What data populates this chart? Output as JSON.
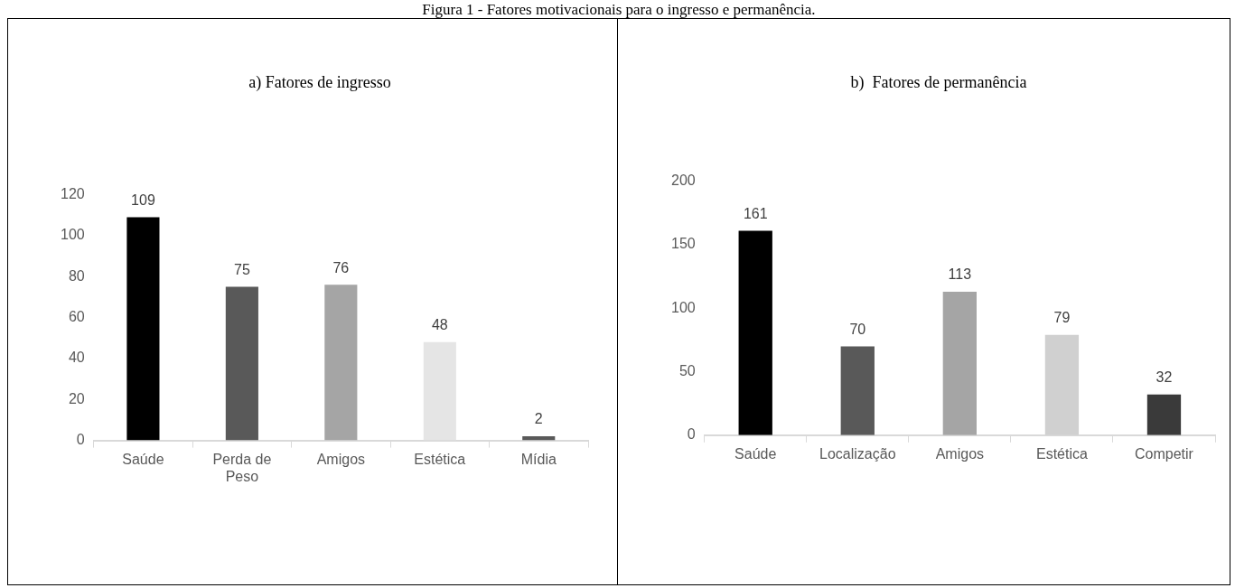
{
  "chart_data": [
    {
      "type": "bar",
      "title": "a) Fatores de ingresso",
      "annotations": [
        "Figura 1 - Fatores motivacionais para o ingresso e permanência."
      ],
      "categories": [
        "Saúde",
        "Perda de Peso",
        "Amigos",
        "Estética",
        "Mídia"
      ],
      "values": [
        109,
        75,
        76,
        48,
        2
      ],
      "colors": [
        "#000000",
        "#595959",
        "#a5a5a5",
        "#e5e5e5",
        "#595959"
      ],
      "ylim": [
        0,
        120
      ],
      "yticks": [
        0,
        20,
        40,
        60,
        80,
        100,
        120
      ],
      "data_labels": true,
      "grid": false,
      "legend": false
    },
    {
      "type": "bar",
      "title": "b)  Fatores de permanência",
      "categories": [
        "Saúde",
        "Localização",
        "Amigos",
        "Estética",
        "Competir"
      ],
      "values": [
        161,
        70,
        113,
        79,
        32
      ],
      "colors": [
        "#000000",
        "#595959",
        "#a5a5a5",
        "#d0d0d0",
        "#3a3a3a"
      ],
      "ylim": [
        0,
        200
      ],
      "yticks": [
        0,
        50,
        100,
        150,
        200
      ],
      "data_labels": true,
      "grid": false,
      "legend": false
    }
  ]
}
